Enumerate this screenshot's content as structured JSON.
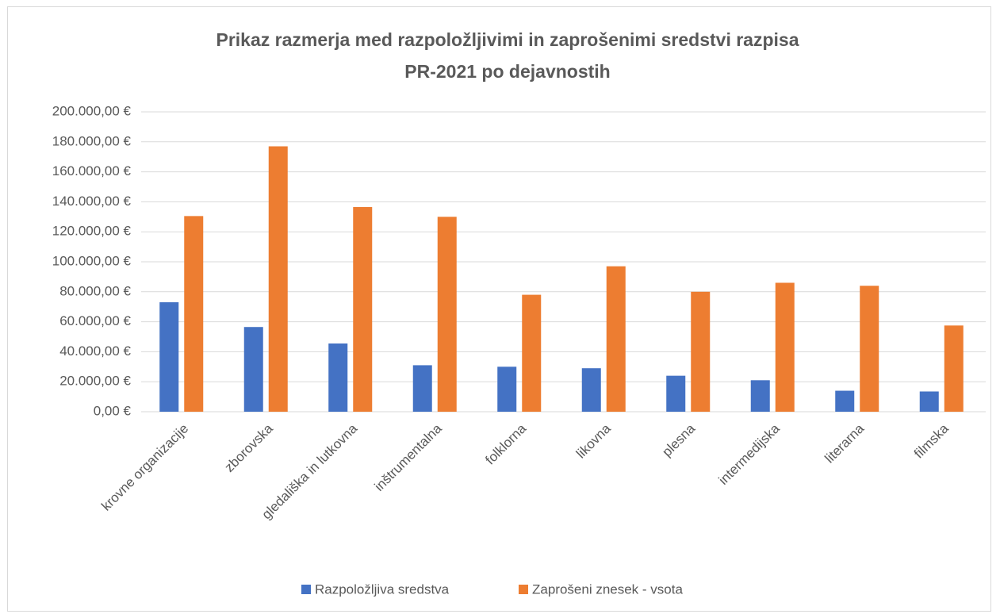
{
  "chart_data": {
    "type": "bar",
    "title": [
      "Prikaz razmerja med razpoložljivimi in zaprošenimi sredstvi razpisa",
      "PR-2021 po dejavnostih"
    ],
    "categories": [
      "krovne organizacije",
      "zborovska",
      "gledališka in lutkovna",
      "inštrumentalna",
      "folklorna",
      "likovna",
      "plesna",
      "intermedijska",
      "literarna",
      "filmska"
    ],
    "series": [
      {
        "name": "Razpoložljiva sredstva",
        "color": "#4472c4",
        "values": [
          73000,
          56500,
          45500,
          31000,
          30000,
          29000,
          24000,
          21000,
          14000,
          13500
        ]
      },
      {
        "name": "Zaprošeni znesek - vsota",
        "color": "#ed7d31",
        "values": [
          130500,
          177000,
          136500,
          130000,
          78000,
          97000,
          80000,
          86000,
          84000,
          57500
        ]
      }
    ],
    "ylim": [
      0,
      200000
    ],
    "yticks": [
      {
        "value": 0,
        "label": "0,00 €"
      },
      {
        "value": 20000,
        "label": "20.000,00 €"
      },
      {
        "value": 40000,
        "label": "40.000,00 €"
      },
      {
        "value": 60000,
        "label": "60.000,00 €"
      },
      {
        "value": 80000,
        "label": "80.000,00 €"
      },
      {
        "value": 100000,
        "label": "100.000,00 €"
      },
      {
        "value": 120000,
        "label": "120.000,00 €"
      },
      {
        "value": 140000,
        "label": "140.000,00 €"
      },
      {
        "value": 160000,
        "label": "160.000,00 €"
      },
      {
        "value": 180000,
        "label": "180.000,00 €"
      },
      {
        "value": 200000,
        "label": "200.000,00 €"
      }
    ],
    "grid": true,
    "legend": "bottom"
  }
}
